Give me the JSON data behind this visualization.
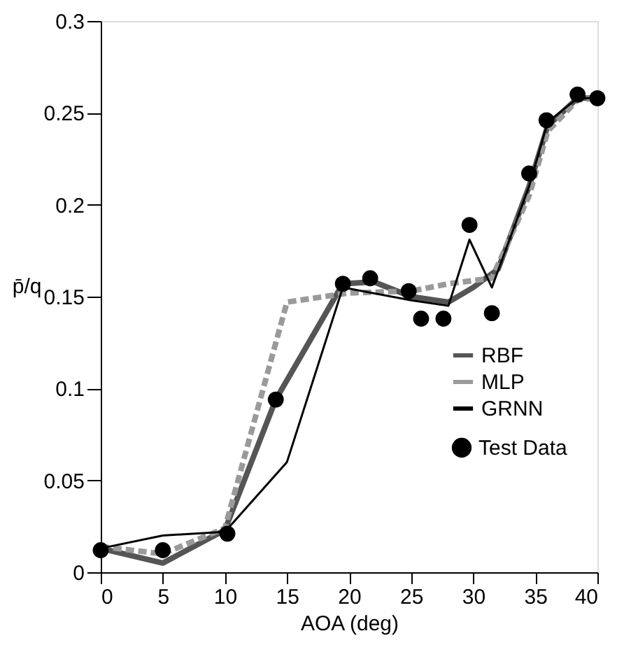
{
  "chart_data": {
    "type": "line",
    "xlabel": "AOA  (deg)",
    "ylabel": "p̄/q",
    "xlim": [
      0,
      40
    ],
    "ylim": [
      0,
      0.3
    ],
    "xticks": [
      0,
      5,
      10,
      15,
      20,
      25,
      30,
      35,
      40
    ],
    "yticks": [
      0,
      0.05,
      0.1,
      0.15,
      0.2,
      0.25,
      0.3
    ],
    "grid": false,
    "legend": "bottom right",
    "marker": "none",
    "series": [
      {
        "name": "RBF",
        "color": "#555555",
        "line_style": "solid",
        "x": [
          0,
          5,
          10,
          14.1,
          19.5,
          22,
          25,
          28,
          30,
          32,
          34.5,
          36,
          38.4,
          40
        ],
        "values": [
          0.013,
          0.005,
          0.023,
          0.094,
          0.157,
          0.158,
          0.15,
          0.147,
          0.155,
          0.165,
          0.21,
          0.243,
          0.258,
          0.258
        ]
      },
      {
        "name": "MLP",
        "color": "#9a9a9a",
        "line_style": "dashed",
        "x": [
          0,
          5,
          10,
          15,
          20,
          25,
          28,
          31.5,
          34.5,
          36,
          38.4,
          40
        ],
        "values": [
          0.014,
          0.01,
          0.024,
          0.147,
          0.152,
          0.153,
          0.157,
          0.16,
          0.205,
          0.24,
          0.257,
          0.258
        ]
      },
      {
        "name": "GRNN",
        "color": "#000000",
        "line_style": "solid",
        "x": [
          0,
          5,
          10,
          15,
          19.5,
          25,
          28,
          29.7,
          31.5,
          34.5,
          36,
          38.4,
          40
        ],
        "values": [
          0.013,
          0.02,
          0.022,
          0.06,
          0.155,
          0.148,
          0.145,
          0.181,
          0.155,
          0.21,
          0.245,
          0.258,
          0.258
        ]
      },
      {
        "name": "Test Data",
        "type": "scatter",
        "marker": "circle",
        "color": "#000000",
        "x": [
          0,
          5,
          10.2,
          14.1,
          19.5,
          21.7,
          24.8,
          25.8,
          27.6,
          29.7,
          31.5,
          34.5,
          35.9,
          38.4,
          40
        ],
        "values": [
          0.012,
          0.012,
          0.021,
          0.094,
          0.157,
          0.16,
          0.153,
          0.138,
          0.138,
          0.189,
          0.141,
          0.217,
          0.246,
          0.26,
          0.258
        ]
      }
    ]
  }
}
